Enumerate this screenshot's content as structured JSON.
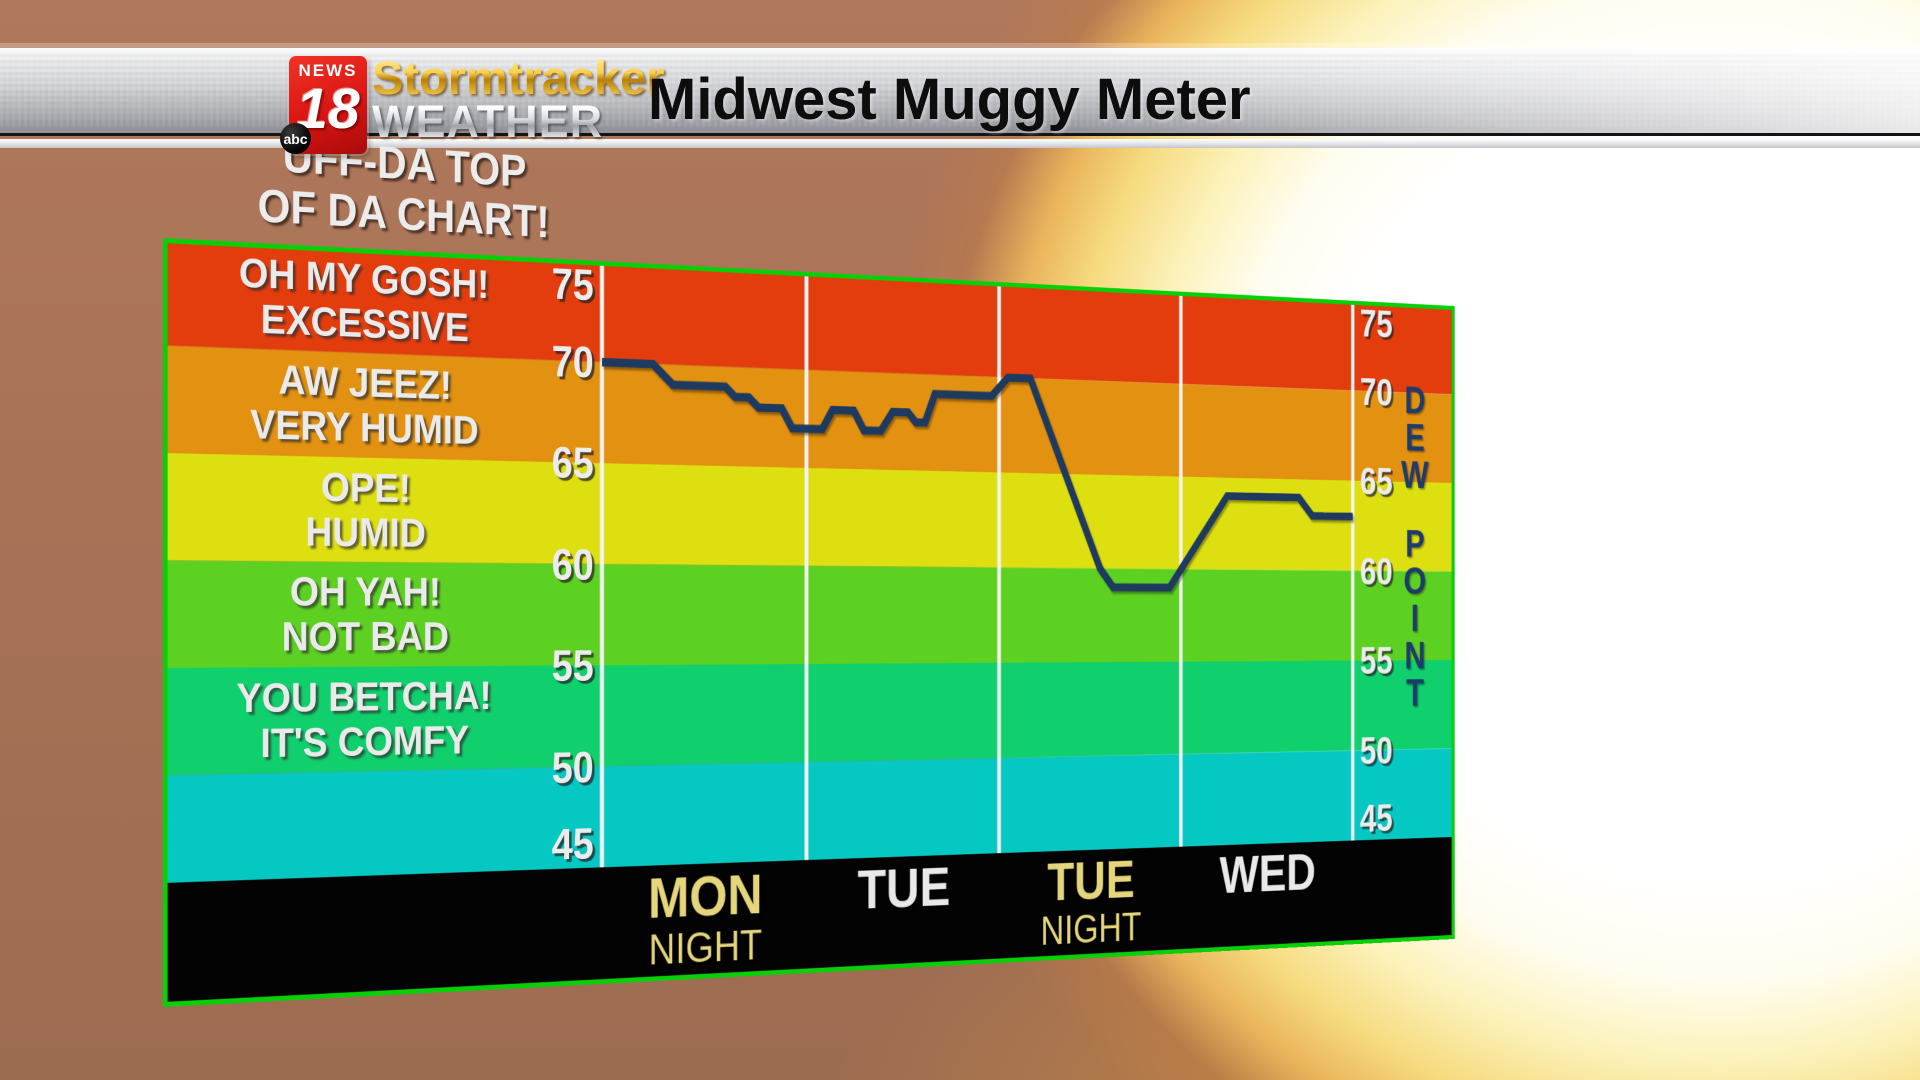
{
  "header": {
    "logo": {
      "news": "NEWS",
      "channel": "18",
      "network": "abc"
    },
    "brand": {
      "line1": "Stormtracker",
      "line2": "WEATHER"
    },
    "title": "Midwest Muggy Meter"
  },
  "chart_data": {
    "type": "line",
    "title_caption": [
      "UFF-DA TOP",
      "OF DA CHART!"
    ],
    "y_axis": {
      "ticks": [
        75,
        70,
        65,
        60,
        55,
        50,
        45
      ],
      "range": [
        45,
        75
      ],
      "title": "DEW POINT"
    },
    "x_sections": [
      {
        "day": "MON",
        "period": "NIGHT",
        "night": true
      },
      {
        "day": "TUE",
        "period": "",
        "night": false
      },
      {
        "day": "TUE",
        "period": "NIGHT",
        "night": true
      },
      {
        "day": "WED",
        "period": "",
        "night": false
      }
    ],
    "bands": [
      {
        "from": 70,
        "to": 75,
        "color": "#e33c0d",
        "label": [
          "OH MY GOSH!",
          "EXCESSIVE"
        ]
      },
      {
        "from": 65,
        "to": 70,
        "color": "#e29110",
        "label": [
          "AW JEEZ!",
          "VERY HUMID"
        ]
      },
      {
        "from": 60,
        "to": 65,
        "color": "#dedf10",
        "label": [
          "OPE!",
          "HUMID"
        ]
      },
      {
        "from": 55,
        "to": 60,
        "color": "#5dd121",
        "label": [
          "OH YAH!",
          "NOT BAD"
        ]
      },
      {
        "from": 50,
        "to": 55,
        "color": "#0fd06d",
        "label": [
          "YOU BETCHA!",
          "IT'S COMFY"
        ]
      },
      {
        "from": 45,
        "to": 50,
        "color": "#06c8c3",
        "label": [
          "",
          ""
        ]
      }
    ],
    "series": [
      {
        "name": "Dew point",
        "color": "#1e3a5f",
        "points": [
          [
            0,
            70
          ],
          [
            0.061,
            70
          ],
          [
            0.085,
            69
          ],
          [
            0.149,
            69
          ],
          [
            0.161,
            68.5
          ],
          [
            0.178,
            68.5
          ],
          [
            0.19,
            68
          ],
          [
            0.219,
            68
          ],
          [
            0.232,
            67
          ],
          [
            0.27,
            67
          ],
          [
            0.283,
            68
          ],
          [
            0.31,
            68
          ],
          [
            0.323,
            67
          ],
          [
            0.345,
            67
          ],
          [
            0.36,
            68
          ],
          [
            0.38,
            68
          ],
          [
            0.39,
            67.5
          ],
          [
            0.402,
            67.5
          ],
          [
            0.415,
            69
          ],
          [
            0.49,
            69
          ],
          [
            0.512,
            70
          ],
          [
            0.542,
            70
          ],
          [
            0.637,
            60
          ],
          [
            0.655,
            59
          ],
          [
            0.734,
            59
          ],
          [
            0.816,
            64
          ],
          [
            0.92,
            64
          ],
          [
            0.94,
            63
          ],
          [
            1,
            63
          ]
        ]
      }
    ],
    "grid": {
      "vertical_lines": 5,
      "color": "#f4f4f4"
    },
    "border_color": "#09cf09",
    "axis_band_color": "#030303",
    "night_label_color": "#e5d67c",
    "day_label_color": "#e9e9e9"
  }
}
